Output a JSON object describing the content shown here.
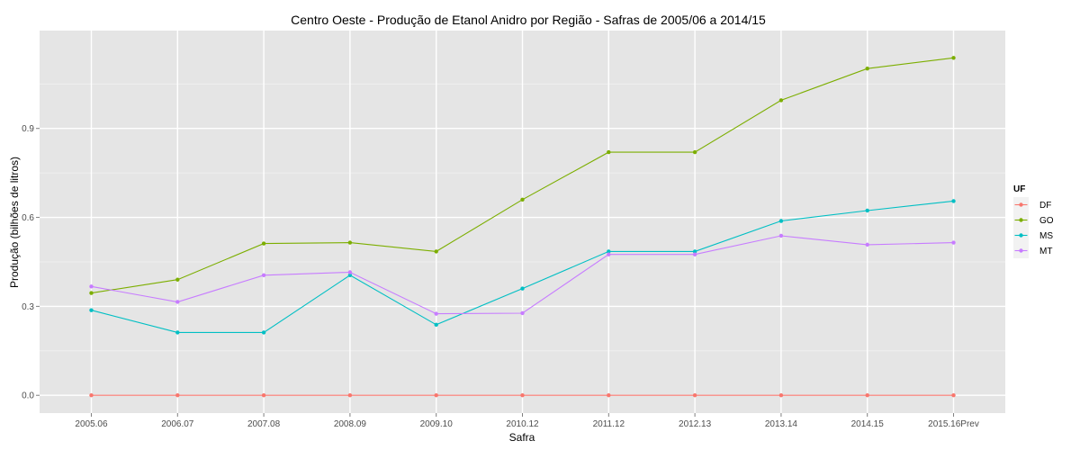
{
  "chart_data": {
    "type": "line",
    "title": "Centro Oeste  - Produção de Etanol Anidro por Região - Safras de 2005/06 a 2014/15",
    "xlabel": "Safra",
    "ylabel": "Produção (bilhões de litros)",
    "categories": [
      "2005.06",
      "2006.07",
      "2007.08",
      "2008.09",
      "2009.10",
      "2010.12",
      "2011.12",
      "2012.13",
      "2013.14",
      "2014.15",
      "2015.16Prev"
    ],
    "yticks": [
      "0.0",
      "0.3",
      "0.6",
      "0.9"
    ],
    "ylim": [
      -0.06,
      1.23
    ],
    "grid": true,
    "legend": {
      "title": "UF",
      "position": "right"
    },
    "series": [
      {
        "name": "DF",
        "color": "#F8766D",
        "values": [
          0.0,
          0.0,
          0.0,
          0.0,
          0.0,
          0.0,
          0.0,
          0.0,
          0.0,
          0.0,
          0.0
        ]
      },
      {
        "name": "GO",
        "color": "#7CAE00",
        "values": [
          0.345,
          0.39,
          0.512,
          0.515,
          0.485,
          0.66,
          0.82,
          0.82,
          0.995,
          1.102,
          1.138
        ]
      },
      {
        "name": "MS",
        "color": "#00BFC4",
        "values": [
          0.287,
          0.212,
          0.212,
          0.405,
          0.238,
          0.36,
          0.485,
          0.485,
          0.588,
          0.623,
          0.655
        ]
      },
      {
        "name": "MT",
        "color": "#C77CFF",
        "values": [
          0.367,
          0.315,
          0.405,
          0.415,
          0.275,
          0.277,
          0.475,
          0.475,
          0.538,
          0.508,
          0.515
        ]
      }
    ]
  }
}
